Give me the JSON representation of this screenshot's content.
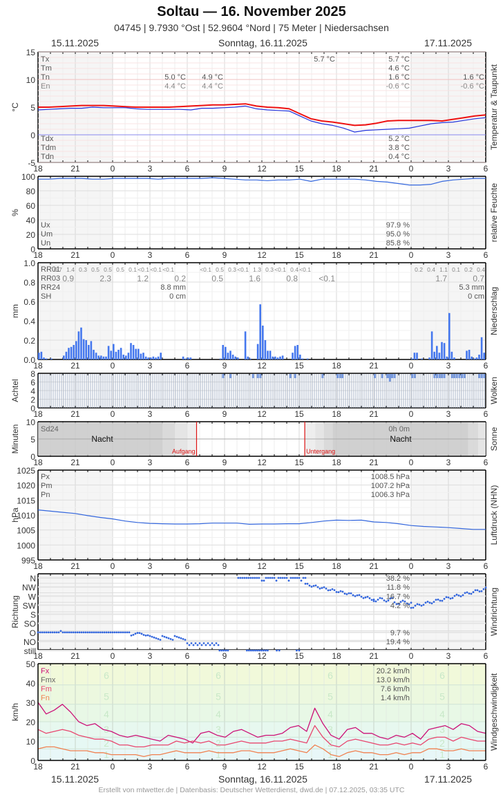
{
  "header": {
    "title": "Soltau  —  16. November 2025",
    "subtitle": "04745  |  9.7930 °Ost  |  52.9604 °Nord  |  75 Meter  |  Niedersachsen",
    "date_left": "15.11.2025",
    "date_center": "Sonntag, 16.11.2025",
    "date_right": "17.11.2025"
  },
  "footer": {
    "date_left": "15.11.2025",
    "date_center": "Sonntag, 16.11.2025",
    "date_right": "17.11.2025",
    "credit": "Erstellt von mtwetter.de | Datenbasis: Deutscher Wetterdienst, dwd.de | 07.12.2025, 03:35 UTC"
  },
  "x_ticks": [
    "18",
    "21",
    "0",
    "3",
    "6",
    "9",
    "12",
    "15",
    "18",
    "21",
    "0",
    "3",
    "6"
  ],
  "chart_data": [
    {
      "type": "line",
      "title": "Temperatur & Taupunkt",
      "ylabel": "°C",
      "ylim": [
        -5,
        15
      ],
      "yticks": [
        "15",
        "10",
        "5",
        "0",
        "-5"
      ],
      "x_range_hours": [
        18,
        54
      ],
      "series": [
        {
          "name": "Temperatur",
          "color": "#ee1111",
          "values": [
            5.0,
            5.0,
            5.1,
            5.2,
            5.3,
            5.3,
            5.3,
            5.2,
            5.1,
            5.0,
            5.0,
            5.0,
            5.0,
            5.1,
            5.2,
            5.3,
            5.4,
            5.4,
            5.5,
            5.6,
            5.2,
            5.0,
            4.9,
            4.7,
            3.8,
            2.9,
            2.5,
            2.3,
            2.0,
            1.7,
            1.8,
            2.1,
            2.5,
            2.6,
            2.6,
            2.6,
            2.6,
            2.5,
            2.8,
            3.1,
            3.4,
            3.6
          ]
        },
        {
          "name": "Taupunkt",
          "color": "#2233dd",
          "values": [
            4.5,
            4.6,
            4.7,
            4.8,
            4.8,
            5.0,
            4.9,
            4.9,
            4.9,
            4.7,
            4.6,
            4.6,
            4.6,
            4.6,
            4.5,
            4.8,
            4.8,
            4.9,
            5.0,
            5.2,
            4.7,
            4.5,
            4.4,
            4.3,
            3.4,
            2.5,
            2.0,
            1.7,
            1.2,
            0.5,
            0.8,
            0.9,
            1.0,
            1.1,
            1.2,
            1.6,
            2.0,
            2.2,
            2.3,
            2.6,
            2.9,
            3.1
          ]
        }
      ],
      "labels_left": [
        "Tx",
        "Tm",
        "Tn",
        "En"
      ],
      "labels_left_bottom": [
        "Tdx",
        "Tdm",
        "Tdn"
      ],
      "annotations": {
        "day1_tn": "5.0 °C",
        "day1_en": "4.4 °C",
        "day2_tn": "4.9 °C",
        "day2_en": "4.4 °C",
        "tx_peak": "5.7 °C",
        "day_tx": "5.7 °C",
        "day_tm": "4.6 °C",
        "day_tn": "1.6 °C",
        "day_en": "-0.6 °C",
        "next_tn": "1.6 °C",
        "next_en": "-0.6 °C",
        "day_tdx": "5.2 °C",
        "day_tdm": "3.8 °C",
        "day_tdn": "0.4 °C"
      }
    },
    {
      "type": "line",
      "title": "relative Feuchte",
      "ylabel": "%",
      "ylim": [
        0,
        100
      ],
      "yticks": [
        "100",
        "80",
        "60",
        "40",
        "20",
        "0"
      ],
      "series": [
        {
          "name": "Feuchte",
          "color": "#3366dd",
          "values": [
            96,
            96,
            97,
            97,
            97,
            96,
            96,
            97,
            97,
            97,
            97,
            96,
            97,
            97,
            97,
            97,
            98,
            97,
            96,
            95,
            95,
            94,
            95,
            95,
            96,
            93,
            96,
            96,
            96,
            96,
            95,
            93,
            92,
            90,
            88,
            88,
            89,
            93,
            95,
            96,
            97,
            97
          ]
        }
      ],
      "labels_left": [
        "Ux",
        "Um",
        "Un"
      ],
      "values_right": [
        "97.9 %",
        "95.0 %",
        "85.8 %"
      ]
    },
    {
      "type": "bar",
      "title": "Niederschlag",
      "ylabel": "mm",
      "ylim": [
        0,
        1.0
      ],
      "yticks": [
        "1.0",
        "0.8",
        "0.6",
        "0.4",
        "0.2",
        "0.0"
      ],
      "bar_color": "#4477ee",
      "bars_per_hour": 6,
      "bars": [
        {
          "h": 18.0,
          "v": 0.07
        },
        {
          "h": 18.2,
          "v": 0.08
        },
        {
          "h": 18.4,
          "v": 0.02
        },
        {
          "h": 18.6,
          "v": 0.01
        },
        {
          "h": 19.0,
          "v": 0.01
        },
        {
          "h": 20.0,
          "v": 0.04
        },
        {
          "h": 20.2,
          "v": 0.08
        },
        {
          "h": 20.4,
          "v": 0.12
        },
        {
          "h": 20.6,
          "v": 0.13
        },
        {
          "h": 20.8,
          "v": 0.15
        },
        {
          "h": 21.0,
          "v": 0.19
        },
        {
          "h": 21.2,
          "v": 0.29
        },
        {
          "h": 21.4,
          "v": 0.33
        },
        {
          "h": 21.6,
          "v": 0.21
        },
        {
          "h": 21.8,
          "v": 0.2
        },
        {
          "h": 22.0,
          "v": 0.15
        },
        {
          "h": 22.2,
          "v": 0.19
        },
        {
          "h": 22.4,
          "v": 0.1
        },
        {
          "h": 22.6,
          "v": 0.07
        },
        {
          "h": 22.8,
          "v": 0.04
        },
        {
          "h": 23.0,
          "v": 0.04
        },
        {
          "h": 23.2,
          "v": 0.03
        },
        {
          "h": 23.4,
          "v": 0.03
        },
        {
          "h": 23.6,
          "v": 0.14
        },
        {
          "h": 23.8,
          "v": 0.09
        },
        {
          "h": 24.0,
          "v": 0.16
        },
        {
          "h": 24.2,
          "v": 0.08
        },
        {
          "h": 24.4,
          "v": 0.1
        },
        {
          "h": 24.6,
          "v": 0.12
        },
        {
          "h": 24.8,
          "v": 0.05
        },
        {
          "h": 25.0,
          "v": 0.04
        },
        {
          "h": 25.2,
          "v": 0.07
        },
        {
          "h": 25.4,
          "v": 0.17
        },
        {
          "h": 25.6,
          "v": 0.15
        },
        {
          "h": 25.8,
          "v": 0.11
        },
        {
          "h": 26.0,
          "v": 0.11
        },
        {
          "h": 26.2,
          "v": 0.06
        },
        {
          "h": 26.4,
          "v": 0.07
        },
        {
          "h": 26.6,
          "v": 0.03
        },
        {
          "h": 26.8,
          "v": 0.02
        },
        {
          "h": 27.0,
          "v": 0.02
        },
        {
          "h": 27.2,
          "v": 0.03
        },
        {
          "h": 27.4,
          "v": 0.02
        },
        {
          "h": 27.6,
          "v": 0.03
        },
        {
          "h": 27.8,
          "v": 0.07
        },
        {
          "h": 29.6,
          "v": 0.03
        },
        {
          "h": 29.8,
          "v": 0.01
        },
        {
          "h": 30.0,
          "v": 0.02
        },
        {
          "h": 30.2,
          "v": 0.02
        },
        {
          "h": 32.6,
          "v": 0.01
        },
        {
          "h": 32.8,
          "v": 0.15
        },
        {
          "h": 33.0,
          "v": 0.13
        },
        {
          "h": 33.2,
          "v": 0.07
        },
        {
          "h": 33.4,
          "v": 0.09
        },
        {
          "h": 33.6,
          "v": 0.05
        },
        {
          "h": 33.8,
          "v": 0.03
        },
        {
          "h": 34.0,
          "v": 0.02
        },
        {
          "h": 34.6,
          "v": 0.29
        },
        {
          "h": 34.8,
          "v": 0.03
        },
        {
          "h": 35.0,
          "v": 0.01
        },
        {
          "h": 35.6,
          "v": 0.16
        },
        {
          "h": 35.8,
          "v": 0.57
        },
        {
          "h": 36.0,
          "v": 0.35
        },
        {
          "h": 36.2,
          "v": 0.2
        },
        {
          "h": 36.4,
          "v": 0.09
        },
        {
          "h": 36.6,
          "v": 0.09
        },
        {
          "h": 36.8,
          "v": 0.03
        },
        {
          "h": 37.0,
          "v": 0.03
        },
        {
          "h": 37.2,
          "v": 0.02
        },
        {
          "h": 37.4,
          "v": 0.03
        },
        {
          "h": 37.6,
          "v": 0.04
        },
        {
          "h": 38.4,
          "v": 0.07
        },
        {
          "h": 38.6,
          "v": 0.14
        },
        {
          "h": 38.8,
          "v": 0.15
        },
        {
          "h": 39.0,
          "v": 0.05
        },
        {
          "h": 39.2,
          "v": 0.01
        },
        {
          "h": 39.6,
          "v": 0.01
        },
        {
          "h": 48.0,
          "v": 0.01
        },
        {
          "h": 48.2,
          "v": 0.07
        },
        {
          "h": 48.4,
          "v": 0.07
        },
        {
          "h": 48.8,
          "v": 0.01
        },
        {
          "h": 49.4,
          "v": 0.02
        },
        {
          "h": 49.6,
          "v": 0.29
        },
        {
          "h": 49.8,
          "v": 0.08
        },
        {
          "h": 50.0,
          "v": 0.14
        },
        {
          "h": 50.2,
          "v": 0.07
        },
        {
          "h": 50.4,
          "v": 0.18
        },
        {
          "h": 50.6,
          "v": 0.17
        },
        {
          "h": 50.8,
          "v": 0.03
        },
        {
          "h": 51.0,
          "v": 0.48
        },
        {
          "h": 51.2,
          "v": 0.08
        },
        {
          "h": 51.4,
          "v": 0.02
        },
        {
          "h": 52.4,
          "v": 0.09
        },
        {
          "h": 52.6,
          "v": 0.1
        },
        {
          "h": 52.8,
          "v": 0.03
        },
        {
          "h": 53.0,
          "v": 0.01
        },
        {
          "h": 53.2,
          "v": 0.02
        },
        {
          "h": 53.4,
          "v": 0.05
        },
        {
          "h": 53.6,
          "v": 0.23
        },
        {
          "h": 53.8,
          "v": 0.07
        }
      ],
      "labels_left": [
        "RR01",
        "RR03",
        "RR24",
        "SH"
      ],
      "rr01": [
        {
          "h": 19.5,
          "v": "0.7"
        },
        {
          "h": 20.5,
          "v": "1.4"
        },
        {
          "h": 21.5,
          "v": "0.3"
        },
        {
          "h": 22.5,
          "v": "0.5"
        },
        {
          "h": 23.5,
          "v": "0.5"
        },
        {
          "h": 24.5,
          "v": "0.5"
        },
        {
          "h": 25.5,
          "v": "0.1"
        },
        {
          "h": 26.5,
          "v": "<0.1"
        },
        {
          "h": 27.5,
          "v": "<0.1"
        },
        {
          "h": 28.5,
          "v": "<0.1"
        },
        {
          "h": 31.5,
          "v": "<0.1"
        },
        {
          "h": 32.5,
          "v": "0.5"
        },
        {
          "h": 33.5,
          "v": "0.3"
        },
        {
          "h": 34.5,
          "v": "<0.1"
        },
        {
          "h": 35.5,
          "v": "1.3"
        },
        {
          "h": 36.5,
          "v": "0.3"
        },
        {
          "h": 37.5,
          "v": "<0.1"
        },
        {
          "h": 38.5,
          "v": "0.4"
        },
        {
          "h": 39.5,
          "v": "<0.1"
        },
        {
          "h": 48.5,
          "v": "0.2"
        },
        {
          "h": 49.5,
          "v": "0.4"
        },
        {
          "h": 50.5,
          "v": "1.1"
        },
        {
          "h": 51.5,
          "v": "0.1"
        },
        {
          "h": 52.5,
          "v": "0.2"
        },
        {
          "h": 53.5,
          "v": "0.4"
        }
      ],
      "rr03": [
        {
          "h": 21,
          "v": "0.9"
        },
        {
          "h": 24,
          "v": "2.3"
        },
        {
          "h": 27,
          "v": "1.2"
        },
        {
          "h": 30,
          "v": "0.2"
        },
        {
          "h": 33,
          "v": "0.5"
        },
        {
          "h": 36,
          "v": "1.6"
        },
        {
          "h": 39,
          "v": "0.8"
        },
        {
          "h": 42,
          "v": "<0.1"
        },
        {
          "h": 51,
          "v": "1.7"
        },
        {
          "h": 54,
          "v": "0.7"
        }
      ],
      "rr24_day": "8.8 mm",
      "sh_day": "0 cm",
      "rr24_next": "5.3 mm",
      "sh_next": "0 cm"
    },
    {
      "type": "bar",
      "title": "Wolken",
      "ylabel": "Achtel",
      "ylim": [
        0,
        8
      ],
      "yticks": [
        "8",
        "6",
        "4",
        "2",
        "0"
      ],
      "description": "Nearly continuous overcast (8/8) with occasional 7/8 and one 6/8 dip around 22:30 on 16.11."
    },
    {
      "type": "area",
      "title": "Sonne",
      "ylabel": "Minuten",
      "ylim": [
        0,
        10
      ],
      "yticks": [
        "10",
        "5",
        "0"
      ],
      "label_sd24": "Sd24",
      "sd24_value": "0h 0m",
      "night_label_1": "Nacht",
      "night_label_2": "Nacht",
      "sunrise_label": "Aufgang",
      "sunset_label": "Untergang",
      "sunrise_hour": 30.75,
      "sunset_hour": 39.45
    },
    {
      "type": "line",
      "title": "Luftdruck (NHN)",
      "ylabel": "hPa",
      "ylim": [
        995,
        1025
      ],
      "yticks": [
        "1025",
        "1020",
        "1015",
        "1010",
        "1005",
        "1000",
        "995"
      ],
      "series": [
        {
          "name": "Luftdruck",
          "color": "#3366dd",
          "values": [
            1011.7,
            1011.3,
            1010.9,
            1010.5,
            1009.8,
            1009.2,
            1008.7,
            1008.0,
            1007.5,
            1007.2,
            1007.1,
            1007.0,
            1007.0,
            1007.1,
            1007.3,
            1007.3,
            1007.3,
            1006.9,
            1007.0,
            1007.0,
            1007.1,
            1007.1,
            1007.5,
            1008.0,
            1008.3,
            1008.2,
            1008.3,
            1007.7,
            1007.5,
            1007.1,
            1006.5,
            1006.2,
            1006.0,
            1005.8,
            1005.5,
            1005.2,
            1005.2
          ]
        }
      ],
      "labels_left": [
        "Px",
        "Pm",
        "Pn"
      ],
      "values_right": [
        "1008.5 hPa",
        "1007.2 hPa",
        "1006.3 hPa"
      ]
    },
    {
      "type": "scatter",
      "title": "Windrichtung",
      "ylabel": "Richtung",
      "yticks": [
        "N",
        "NW",
        "W",
        "SW",
        "S",
        "SO",
        "O",
        "NO",
        "still"
      ],
      "values_right": [
        "38.2 %",
        "11.8 %",
        "16.7 %",
        "4.2 %",
        "",
        "",
        "9.7 %",
        "19.4 %"
      ]
    },
    {
      "type": "line",
      "title": "Windgeschwindigkeit",
      "ylabel": "km/h",
      "ylim": [
        0,
        50
      ],
      "yticks": [
        "50",
        "40",
        "30",
        "20",
        "10",
        "0"
      ],
      "beaufort_labels": [
        "6",
        "5",
        "4",
        "3",
        "2",
        "1"
      ],
      "labels_left": [
        "Fx",
        "Fmx",
        "Fm",
        "Fn"
      ],
      "values_right": [
        "20.2 km/h",
        "13.0 km/h",
        "7.6 km/h",
        "1.4 km/h"
      ],
      "series": [
        {
          "name": "Fx",
          "color": "#cc1177",
          "values": [
            30,
            24,
            26,
            29,
            25,
            20,
            18,
            19,
            16,
            15,
            13,
            12,
            13,
            12,
            11,
            10,
            13,
            12,
            11,
            9,
            14,
            15,
            13,
            12,
            15,
            16,
            14,
            12,
            13,
            13,
            14,
            17,
            18,
            15,
            27,
            19,
            13,
            11,
            16,
            17,
            14,
            14,
            12,
            11,
            13,
            12,
            14,
            11,
            16,
            17,
            18,
            16,
            19,
            18,
            15,
            14
          ]
        },
        {
          "name": "Fm",
          "color": "#e8466e",
          "values": [
            16,
            14,
            15,
            16,
            15,
            13,
            12,
            11,
            11,
            10,
            8,
            8,
            7,
            7,
            8,
            8,
            8,
            10,
            9,
            10,
            9,
            10,
            8,
            8,
            9,
            10,
            9,
            9,
            9,
            10,
            10,
            11,
            10,
            9,
            18,
            12,
            8,
            7,
            10,
            11,
            10,
            9,
            8,
            8,
            9,
            8,
            9,
            8,
            11,
            12,
            12,
            10,
            12,
            11,
            10,
            10
          ]
        },
        {
          "name": "Fn",
          "color": "#f08050",
          "values": [
            6,
            7,
            7,
            6,
            5,
            5,
            5,
            4,
            4,
            3,
            3,
            3,
            3,
            2,
            3,
            3,
            4,
            5,
            4,
            4,
            4,
            5,
            4,
            4,
            4,
            5,
            5,
            4,
            4,
            4,
            5,
            6,
            5,
            4,
            8,
            6,
            3,
            2,
            4,
            5,
            4,
            4,
            3,
            3,
            4,
            3,
            4,
            4,
            6,
            6,
            5,
            5,
            6,
            5,
            5,
            5
          ]
        }
      ]
    }
  ]
}
